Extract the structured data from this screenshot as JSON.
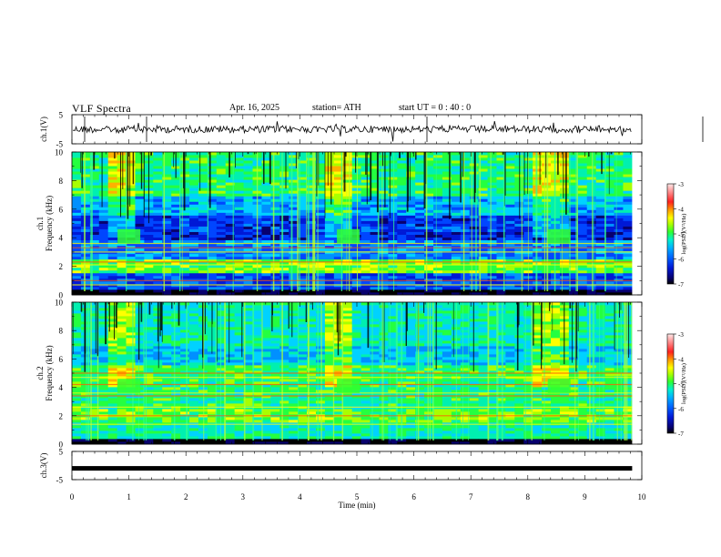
{
  "header": {
    "title": "VLF  Spectra",
    "date": "Apr. 16, 2025",
    "station": "station= ATH",
    "start_ut": "start  UT  =    0  : 40 : 0"
  },
  "chart_data": [
    {
      "type": "line",
      "name": "ch1-waveform",
      "ylabel": "ch.1(V)",
      "ylim": [
        -5,
        5
      ],
      "yticks": [
        5,
        -5
      ],
      "xlim": [
        0,
        10
      ],
      "x_extent_min": 9.83,
      "baseline": 0.0,
      "colors": {
        "line": "#000000"
      }
    },
    {
      "type": "heatmap",
      "name": "ch1-spectrogram",
      "ylabel": "ch.1\nFrequency  (kHz)",
      "ylim": [
        0,
        10
      ],
      "yticks": [
        0,
        2,
        4,
        6,
        8,
        10
      ],
      "xlim": [
        0,
        10
      ],
      "x_extent_min": 9.83,
      "colorbar": {
        "label": "log(PSD)(V²/Hz)",
        "range": [
          -7,
          -3
        ],
        "ticks": [
          -3,
          -4,
          -5,
          -6,
          -7
        ]
      },
      "bursts_min": [
        0.85,
        4.7,
        8.4
      ],
      "lines_khz": [
        0.7,
        1.0,
        2.1,
        2.3,
        3.0,
        3.3,
        3.6
      ]
    },
    {
      "type": "heatmap",
      "name": "ch2-spectrogram",
      "ylabel": "ch.2\nFrequency  (kHz)",
      "ylim": [
        0,
        10
      ],
      "yticks": [
        0,
        2,
        4,
        6,
        8,
        10
      ],
      "xlim": [
        0,
        10
      ],
      "x_extent_min": 9.83,
      "colorbar": {
        "label": "log(PSD)(V²/Hz)",
        "range": [
          -7,
          -3
        ],
        "ticks": [
          -3,
          -4,
          -5,
          -6,
          -7
        ]
      },
      "bursts_min": [
        0.85,
        4.7,
        8.4
      ],
      "lines_khz": [
        1.4,
        2.0,
        2.6,
        3.4,
        3.6,
        4.2,
        4.7,
        5.0
      ]
    },
    {
      "type": "line",
      "name": "ch3-waveform",
      "ylabel": "ch.3(V)",
      "ylim": [
        -5,
        5
      ],
      "yticks": [
        5,
        -5
      ],
      "xlim": [
        0,
        10
      ],
      "x_extent_min": 9.83,
      "baseline": -1.0,
      "colors": {
        "line": "#000000"
      }
    }
  ],
  "xaxis": {
    "label": "Time  (min)",
    "ticks": [
      "0",
      "1",
      "2",
      "3",
      "4",
      "5",
      "6",
      "7",
      "8",
      "9",
      "10"
    ]
  },
  "colormap": [
    "#000000",
    "#08006e",
    "#0019d6",
    "#0046ff",
    "#0090ff",
    "#00d2ff",
    "#00f0b0",
    "#24ff40",
    "#a8ff00",
    "#ffff00",
    "#ffb000",
    "#ff5a00",
    "#ff1e1e",
    "#ff8080",
    "#ffd8d8"
  ]
}
